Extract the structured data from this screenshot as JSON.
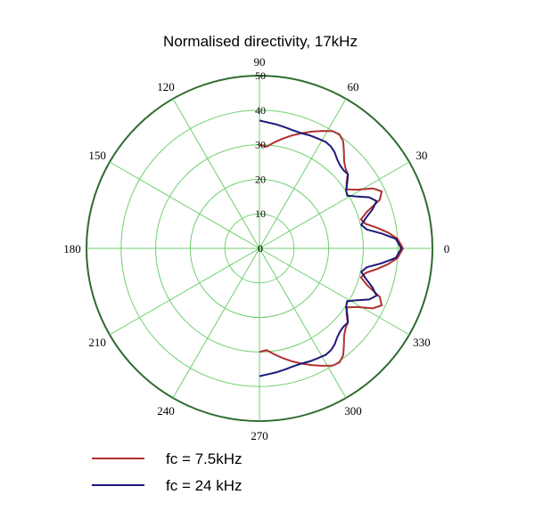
{
  "chart_data": {
    "type": "polar-line",
    "title": "Normalised directivity, 17kHz",
    "angle_unit": "degrees",
    "angle_ticks": [
      0,
      30,
      60,
      90,
      120,
      150,
      180,
      210,
      240,
      270,
      300,
      330
    ],
    "radial_ticks": [
      0,
      10,
      20,
      30,
      40,
      50
    ],
    "rlim": [
      0,
      50
    ],
    "grid": true,
    "legend_position": "bottom-left",
    "colors": {
      "grid": "#6fcf6f",
      "outer_ring": "#2e6b2e",
      "axis_text": "#000000"
    },
    "series": [
      {
        "name": "fc = 7.5kHz",
        "color": "#b03030",
        "points": [
          [
            270,
            30
          ],
          [
            274,
            29.5
          ],
          [
            278,
            31
          ],
          [
            282,
            32.5
          ],
          [
            286,
            34
          ],
          [
            290,
            35.5
          ],
          [
            294,
            37
          ],
          [
            298,
            38.5
          ],
          [
            302,
            40
          ],
          [
            305,
            40.3
          ],
          [
            308,
            39.3
          ],
          [
            311,
            37.2
          ],
          [
            314,
            35.2
          ],
          [
            317,
            34
          ],
          [
            320,
            33.3
          ],
          [
            323,
            31.5
          ],
          [
            326,
            30.5
          ],
          [
            329,
            33
          ],
          [
            332,
            37
          ],
          [
            335,
            39
          ],
          [
            338,
            37.5
          ],
          [
            341,
            33
          ],
          [
            344,
            30.5
          ],
          [
            347,
            31.5
          ],
          [
            350,
            34.5
          ],
          [
            353,
            37.5
          ],
          [
            356,
            40
          ],
          [
            0,
            41.5
          ],
          [
            4,
            40
          ],
          [
            7,
            37.5
          ],
          [
            10,
            34.5
          ],
          [
            13,
            31.5
          ],
          [
            16,
            30.5
          ],
          [
            19,
            33
          ],
          [
            22,
            37.5
          ],
          [
            25,
            39
          ],
          [
            28,
            37
          ],
          [
            31,
            33
          ],
          [
            34,
            30.5
          ],
          [
            37,
            31.5
          ],
          [
            40,
            33.3
          ],
          [
            43,
            34
          ],
          [
            46,
            35.2
          ],
          [
            49,
            37.2
          ],
          [
            52,
            39.3
          ],
          [
            55,
            40.3
          ],
          [
            58,
            40
          ],
          [
            62,
            38.5
          ],
          [
            66,
            37
          ],
          [
            70,
            35.5
          ],
          [
            74,
            34
          ],
          [
            78,
            32.5
          ],
          [
            82,
            31
          ],
          [
            86,
            29.5
          ],
          [
            90,
            30
          ]
        ]
      },
      {
        "name": "fc = 24 kHz",
        "color": "#1a1a7a",
        "points": [
          [
            270,
            37
          ],
          [
            274,
            36.5
          ],
          [
            278,
            36.2
          ],
          [
            282,
            35.8
          ],
          [
            286,
            35.5
          ],
          [
            290,
            35.5
          ],
          [
            294,
            35.8
          ],
          [
            298,
            36
          ],
          [
            302,
            36.3
          ],
          [
            305,
            36
          ],
          [
            308,
            35.3
          ],
          [
            311,
            34.2
          ],
          [
            314,
            33.5
          ],
          [
            317,
            33.2
          ],
          [
            320,
            33.4
          ],
          [
            323,
            31.8
          ],
          [
            326,
            30.2
          ],
          [
            329,
            29.6
          ],
          [
            332,
            32
          ],
          [
            335,
            35
          ],
          [
            338,
            36.5
          ],
          [
            341,
            34.5
          ],
          [
            344,
            32
          ],
          [
            347,
            30.2
          ],
          [
            350,
            31.5
          ],
          [
            353,
            35.5
          ],
          [
            356,
            39.5
          ],
          [
            0,
            41
          ],
          [
            4,
            39.5
          ],
          [
            7,
            35.5
          ],
          [
            10,
            31.5
          ],
          [
            13,
            30.2
          ],
          [
            16,
            32
          ],
          [
            19,
            34.5
          ],
          [
            22,
            36.5
          ],
          [
            25,
            35
          ],
          [
            28,
            32
          ],
          [
            31,
            29.6
          ],
          [
            34,
            30.2
          ],
          [
            37,
            31.8
          ],
          [
            40,
            33.4
          ],
          [
            43,
            33.2
          ],
          [
            46,
            33.5
          ],
          [
            49,
            34.2
          ],
          [
            52,
            35.3
          ],
          [
            55,
            36
          ],
          [
            58,
            36.3
          ],
          [
            62,
            36
          ],
          [
            66,
            35.8
          ],
          [
            70,
            35.5
          ],
          [
            74,
            35.5
          ],
          [
            78,
            35.8
          ],
          [
            82,
            36.2
          ],
          [
            86,
            36.5
          ],
          [
            90,
            37
          ]
        ]
      }
    ]
  }
}
